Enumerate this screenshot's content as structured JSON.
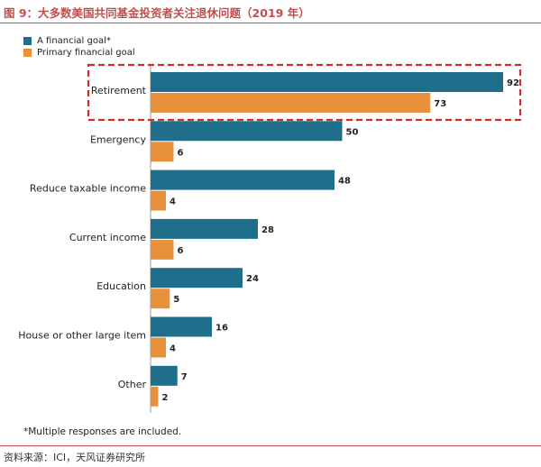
{
  "figure": {
    "title": "图 9：大多数美国共同基金投资者关注退休问题（2019 年）",
    "footnote": "*Multiple responses are included.",
    "source": "资料来源：ICI，天风证券研究所"
  },
  "colors": {
    "series_a": "#1f6e8c",
    "series_b": "#e8913c",
    "highlight": "#d42a2a",
    "title": "#c0504d"
  },
  "chart_data": {
    "type": "bar",
    "orientation": "horizontal",
    "categories": [
      "Retirement",
      "Emergency",
      "Reduce taxable income",
      "Current income",
      "Education",
      "House or other large item",
      "Other"
    ],
    "series": [
      {
        "name": "A financial goal*",
        "values": [
          92,
          50,
          48,
          28,
          24,
          16,
          7
        ]
      },
      {
        "name": "Primary financial goal",
        "values": [
          73,
          6,
          4,
          6,
          5,
          4,
          2
        ]
      }
    ],
    "xlim": [
      0,
      92
    ],
    "highlighted_category": "Retirement",
    "grid": false,
    "legend": "top-left"
  }
}
